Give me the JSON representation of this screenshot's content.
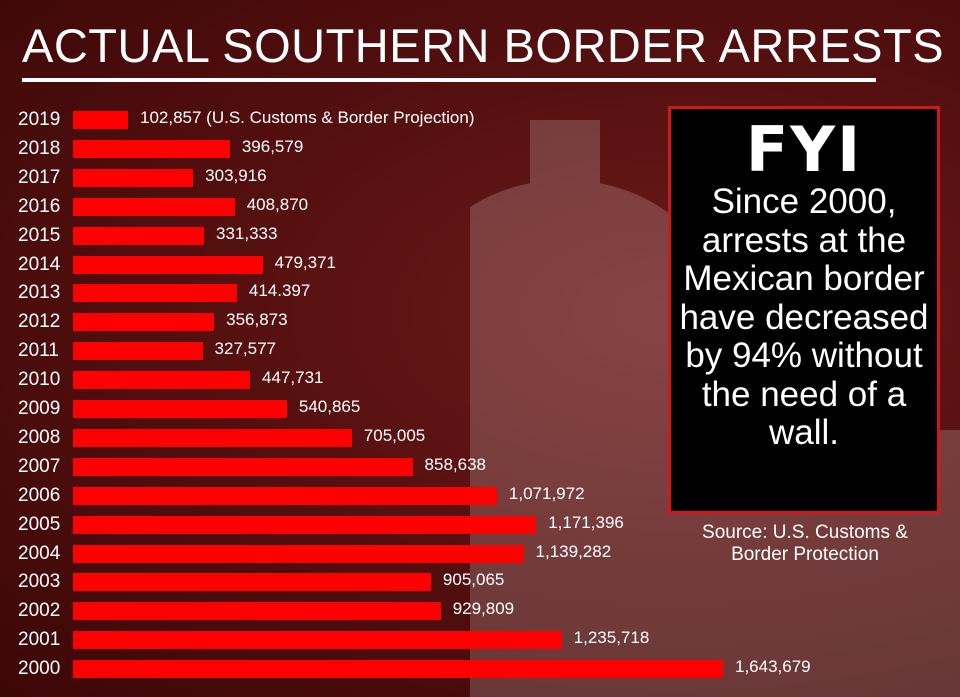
{
  "header": {
    "title": "ACTUAL SOUTHERN BORDER ARRESTS"
  },
  "fyi": {
    "heading": "FYI",
    "body": "Since 2000, arrests at the Mexican border have decreased by 94% without the need of a wall."
  },
  "source": "Source: U.S. Customs & Border Protection",
  "colors": {
    "bar": "#ff0000",
    "background": "#561010",
    "box_border": "#d0181b"
  },
  "chart_data": {
    "type": "bar",
    "orientation": "horizontal",
    "title": "ACTUAL SOUTHERN BORDER ARRESTS",
    "xlabel": "",
    "ylabel": "",
    "categories": [
      "2019",
      "2018",
      "2017",
      "2016",
      "2015",
      "2014",
      "2013",
      "2012",
      "2011",
      "2010",
      "2009",
      "2008",
      "2007",
      "2006",
      "2005",
      "2004",
      "2003",
      "2002",
      "2001",
      "2000"
    ],
    "values": [
      102857,
      396579,
      303916,
      408870,
      331333,
      479371,
      414397,
      356873,
      327577,
      447731,
      540865,
      705005,
      858638,
      1071972,
      1171396,
      1139282,
      905065,
      929809,
      1235718,
      1643679
    ],
    "data_labels": [
      "102,857",
      "396,579",
      "303,916",
      "408,870",
      "331,333",
      "479,371",
      "414.397",
      "356,873",
      "327,577",
      "447,731",
      "540,865",
      "705,005",
      "858,638",
      "1,071,972",
      "1,171,396",
      "1,139,282",
      "905,065",
      "929,809",
      "1,235,718",
      "1,643,679"
    ],
    "annotation": "(U.S. Customs & Border Projection)",
    "xlim": [
      0,
      1643679
    ],
    "grid": false
  }
}
